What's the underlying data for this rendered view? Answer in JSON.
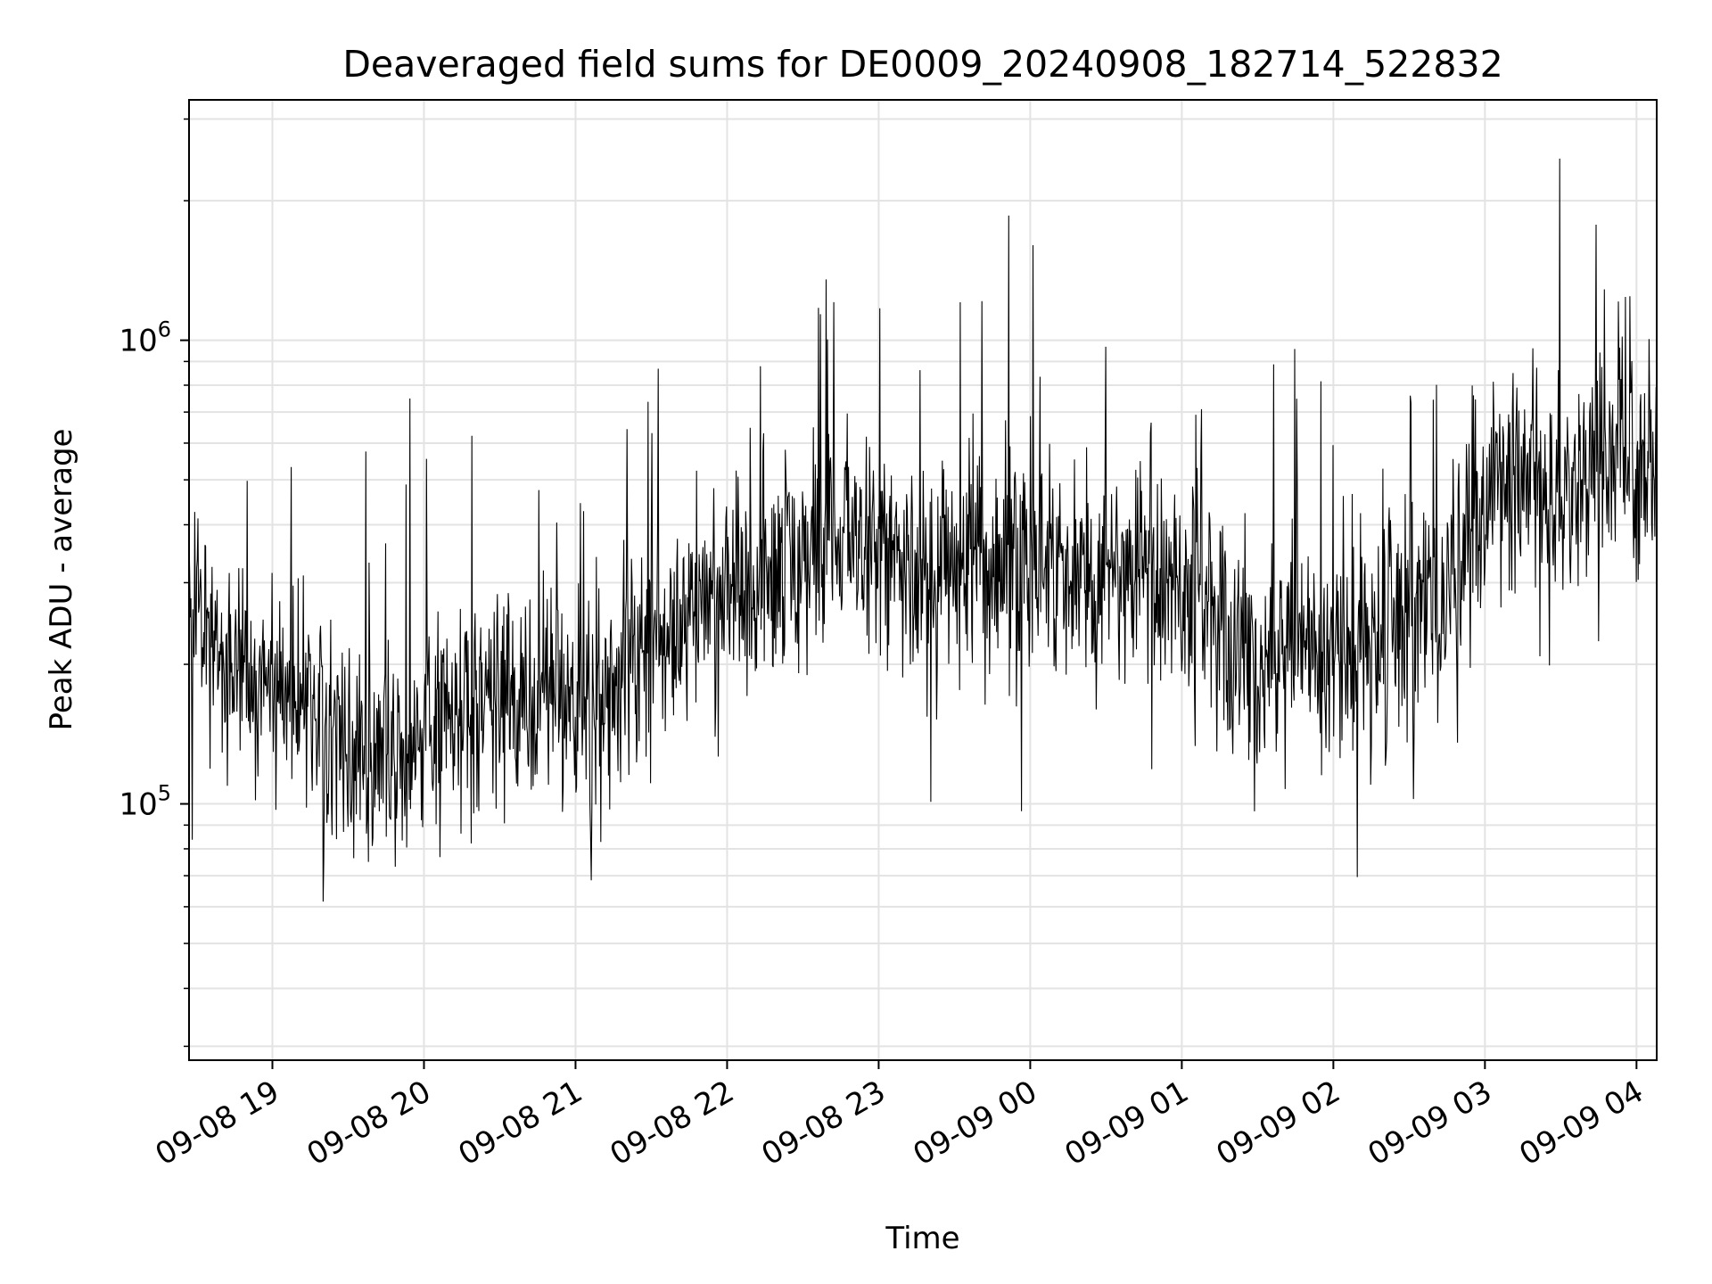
{
  "chart_data": {
    "type": "line",
    "title": "Deaveraged field sums for DE0009_20240908_182714_522832",
    "xlabel": "Time",
    "ylabel": "Peak ADU - average",
    "yscale": "log",
    "ylim": [
      28000,
      3300000
    ],
    "xlim": [
      "2024-09-08 18:27",
      "2024-09-09 04:08"
    ],
    "x_ticks": [
      {
        "t": "2024-09-08 19:00",
        "label": "09-08 19"
      },
      {
        "t": "2024-09-08 20:00",
        "label": "09-08 20"
      },
      {
        "t": "2024-09-08 21:00",
        "label": "09-08 21"
      },
      {
        "t": "2024-09-08 22:00",
        "label": "09-08 22"
      },
      {
        "t": "2024-09-08 23:00",
        "label": "09-08 23"
      },
      {
        "t": "2024-09-09 00:00",
        "label": "09-09 00"
      },
      {
        "t": "2024-09-09 01:00",
        "label": "09-09 01"
      },
      {
        "t": "2024-09-09 02:00",
        "label": "09-09 02"
      },
      {
        "t": "2024-09-09 03:00",
        "label": "09-09 03"
      },
      {
        "t": "2024-09-09 04:00",
        "label": "09-09 04"
      }
    ],
    "y_ticks": [
      {
        "value": 100000,
        "base": "10",
        "exp": "5"
      },
      {
        "value": 1000000,
        "base": "10",
        "exp": "6"
      }
    ],
    "grid": true,
    "line_color": "#000000",
    "series": [
      {
        "name": "",
        "x": [
          "2024-09-08 18:27",
          "2024-09-08 18:35",
          "2024-09-08 18:45",
          "2024-09-08 18:55",
          "2024-09-08 19:05",
          "2024-09-08 19:15",
          "2024-09-08 19:25",
          "2024-09-08 19:35",
          "2024-09-08 19:45",
          "2024-09-08 19:55",
          "2024-09-08 20:05",
          "2024-09-08 20:15",
          "2024-09-08 20:25",
          "2024-09-08 20:35",
          "2024-09-08 20:45",
          "2024-09-08 20:55",
          "2024-09-08 21:05",
          "2024-09-08 21:15",
          "2024-09-08 21:25",
          "2024-09-08 21:35",
          "2024-09-08 21:45",
          "2024-09-08 21:55",
          "2024-09-08 22:05",
          "2024-09-08 22:15",
          "2024-09-08 22:25",
          "2024-09-08 22:35",
          "2024-09-08 22:45",
          "2024-09-08 22:55",
          "2024-09-08 23:05",
          "2024-09-08 23:15",
          "2024-09-08 23:25",
          "2024-09-08 23:35",
          "2024-09-08 23:45",
          "2024-09-08 23:55",
          "2024-09-09 00:05",
          "2024-09-09 00:15",
          "2024-09-09 00:25",
          "2024-09-09 00:35",
          "2024-09-09 00:45",
          "2024-09-09 00:55",
          "2024-09-09 01:05",
          "2024-09-09 01:15",
          "2024-09-09 01:25",
          "2024-09-09 01:35",
          "2024-09-09 01:45",
          "2024-09-09 01:55",
          "2024-09-09 02:05",
          "2024-09-09 02:15",
          "2024-09-09 02:25",
          "2024-09-09 02:35",
          "2024-09-09 02:45",
          "2024-09-09 02:55",
          "2024-09-09 03:05",
          "2024-09-09 03:15",
          "2024-09-09 03:25",
          "2024-09-09 03:35",
          "2024-09-09 03:45",
          "2024-09-09 03:55",
          "2024-09-09 04:05"
        ],
        "values": [
          250000,
          230000,
          200000,
          180000,
          175000,
          160000,
          140000,
          130000,
          125000,
          130000,
          150000,
          165000,
          170000,
          160000,
          170000,
          175000,
          165000,
          175000,
          210000,
          240000,
          260000,
          290000,
          300000,
          300000,
          330000,
          340000,
          360000,
          380000,
          330000,
          310000,
          320000,
          330000,
          340000,
          330000,
          320000,
          300000,
          300000,
          320000,
          290000,
          300000,
          300000,
          260000,
          210000,
          220000,
          230000,
          210000,
          200000,
          230000,
          250000,
          260000,
          270000,
          350000,
          500000,
          520000,
          480000,
          520000,
          560000,
          540000,
          500000
        ]
      }
    ]
  }
}
